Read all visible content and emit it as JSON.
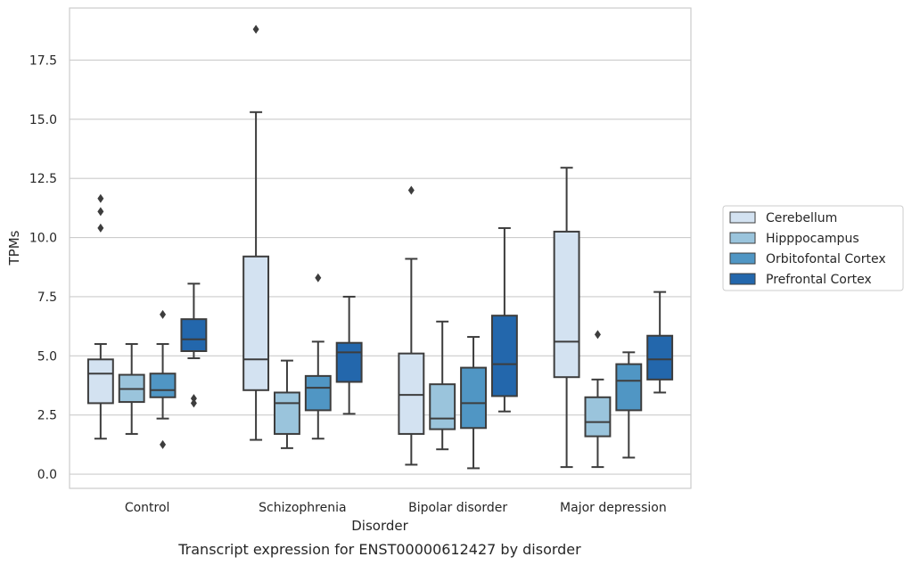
{
  "chart_data": {
    "type": "box",
    "caption": "Transcript expression for ENST00000612427 by disorder",
    "xlabel": "Disorder",
    "ylabel": "TPMs",
    "ylim": [
      -0.6,
      19.7
    ],
    "yticks": [
      0.0,
      2.5,
      5.0,
      7.5,
      10.0,
      12.5,
      15.0,
      17.5
    ],
    "ytick_labels": [
      "0.0",
      "2.5",
      "5.0",
      "7.5",
      "10.0",
      "12.5",
      "15.0",
      "17.5"
    ],
    "grid": "horizontal",
    "legend_position": "right",
    "categories": [
      "Control",
      "Schizophrenia",
      "Bipolar disorder",
      "Major depression"
    ],
    "series": [
      {
        "name": "Cerebellum",
        "color": "#d3e2f1",
        "boxes": [
          {
            "whisker_low": 1.5,
            "q1": 3.0,
            "median": 4.25,
            "q3": 4.85,
            "whisker_high": 5.5,
            "outliers": [
              11.65,
              11.1,
              10.4
            ]
          },
          {
            "whisker_low": 1.45,
            "q1": 3.55,
            "median": 4.85,
            "q3": 9.2,
            "whisker_high": 15.3,
            "outliers": [
              18.8
            ]
          },
          {
            "whisker_low": 0.4,
            "q1": 1.7,
            "median": 3.35,
            "q3": 5.1,
            "whisker_high": 9.1,
            "outliers": [
              12.0
            ]
          },
          {
            "whisker_low": 0.3,
            "q1": 4.1,
            "median": 5.6,
            "q3": 10.25,
            "whisker_high": 12.95,
            "outliers": []
          }
        ]
      },
      {
        "name": "Hipppocampus",
        "color": "#9ac4dc",
        "boxes": [
          {
            "whisker_low": 1.7,
            "q1": 3.05,
            "median": 3.6,
            "q3": 4.2,
            "whisker_high": 5.5,
            "outliers": []
          },
          {
            "whisker_low": 1.1,
            "q1": 1.7,
            "median": 3.0,
            "q3": 3.45,
            "whisker_high": 4.8,
            "outliers": []
          },
          {
            "whisker_low": 1.05,
            "q1": 1.9,
            "median": 2.35,
            "q3": 3.8,
            "whisker_high": 6.45,
            "outliers": []
          },
          {
            "whisker_low": 0.3,
            "q1": 1.6,
            "median": 2.2,
            "q3": 3.25,
            "whisker_high": 4.0,
            "outliers": [
              5.9
            ]
          }
        ]
      },
      {
        "name": "Orbitofontal Cortex",
        "color": "#5096c4",
        "boxes": [
          {
            "whisker_low": 2.35,
            "q1": 3.25,
            "median": 3.55,
            "q3": 4.25,
            "whisker_high": 5.5,
            "outliers": [
              6.75,
              1.25
            ]
          },
          {
            "whisker_low": 1.5,
            "q1": 2.7,
            "median": 3.65,
            "q3": 4.15,
            "whisker_high": 5.6,
            "outliers": [
              8.3
            ]
          },
          {
            "whisker_low": 0.25,
            "q1": 1.95,
            "median": 3.0,
            "q3": 4.5,
            "whisker_high": 5.8,
            "outliers": []
          },
          {
            "whisker_low": 0.7,
            "q1": 2.7,
            "median": 3.95,
            "q3": 4.65,
            "whisker_high": 5.15,
            "outliers": []
          }
        ]
      },
      {
        "name": "Prefrontal Cortex",
        "color": "#2367ac",
        "boxes": [
          {
            "whisker_low": 4.9,
            "q1": 5.2,
            "median": 5.7,
            "q3": 6.55,
            "whisker_high": 8.05,
            "outliers": [
              3.2,
              3.0
            ]
          },
          {
            "whisker_low": 2.55,
            "q1": 3.9,
            "median": 5.15,
            "q3": 5.55,
            "whisker_high": 7.5,
            "outliers": []
          },
          {
            "whisker_low": 2.65,
            "q1": 3.3,
            "median": 4.65,
            "q3": 6.7,
            "whisker_high": 10.4,
            "outliers": []
          },
          {
            "whisker_low": 3.45,
            "q1": 4.0,
            "median": 4.85,
            "q3": 5.85,
            "whisker_high": 7.7,
            "outliers": []
          }
        ]
      }
    ]
  },
  "colors": {
    "box_edge": "#3d3d3d",
    "grid": "#cccccc",
    "frame": "#cccccc"
  }
}
